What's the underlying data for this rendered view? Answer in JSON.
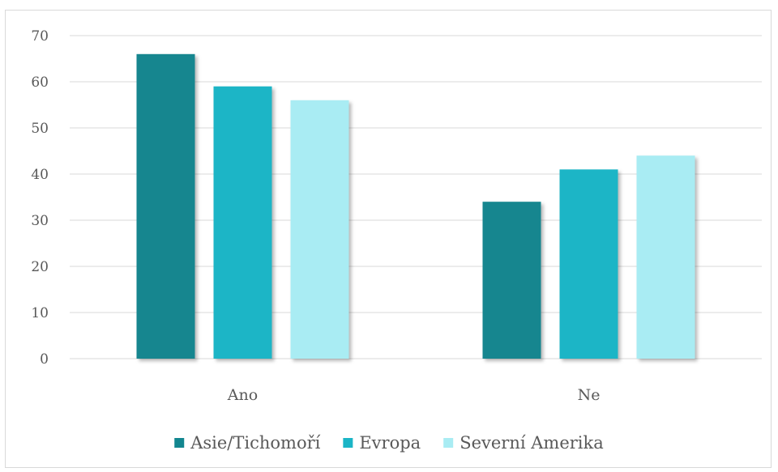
{
  "chart_data": {
    "type": "bar",
    "title": "",
    "xlabel": "",
    "ylabel": "",
    "categories": [
      "Ano",
      "Ne"
    ],
    "series": [
      {
        "name": "Asie/Tichomoří",
        "values": [
          66,
          34
        ],
        "color": "#12868F"
      },
      {
        "name": "Evropa",
        "values": [
          59,
          41
        ],
        "color": "#1BB5C6"
      },
      {
        "name": "Severní Amerika",
        "values": [
          56,
          44
        ],
        "color": "#A9ECF3"
      }
    ],
    "ylim": [
      0,
      70
    ],
    "yticks": [
      "0",
      "10",
      "20",
      "30",
      "40",
      "50",
      "60",
      "70"
    ],
    "grid": true,
    "legend_position": "bottom"
  }
}
